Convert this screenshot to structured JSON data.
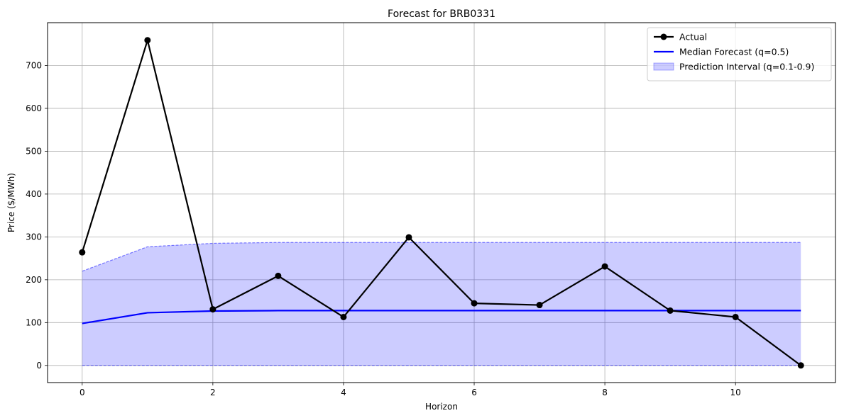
{
  "chart_data": {
    "type": "line",
    "title": "Forecast for BRB0331",
    "xlabel": "Horizon",
    "ylabel": "Price ($/MWh)",
    "x": [
      0,
      1,
      2,
      3,
      4,
      5,
      6,
      7,
      8,
      9,
      10,
      11
    ],
    "xlim": [
      -0.53,
      11.53
    ],
    "ylim": [
      -40,
      800
    ],
    "xticks": [
      0,
      2,
      4,
      6,
      8,
      10
    ],
    "yticks": [
      0,
      100,
      200,
      300,
      400,
      500,
      600,
      700
    ],
    "grid": true,
    "legend_position": "top-right",
    "series": [
      {
        "name": "Actual",
        "kind": "line-marker",
        "color": "#000000",
        "values": [
          264,
          759,
          131,
          209,
          113,
          299,
          145,
          141,
          231,
          128,
          113,
          0
        ]
      },
      {
        "name": "Median Forecast (q=0.5)",
        "kind": "line",
        "color": "#0000ff",
        "values": [
          98,
          123,
          127,
          128,
          128,
          128,
          128,
          128,
          128,
          128,
          128,
          128
        ]
      },
      {
        "name": "Prediction Interval (q=0.1-0.9)",
        "kind": "band",
        "color": "#0000ff",
        "fill_opacity": 0.2,
        "lower": [
          0,
          0,
          0,
          0,
          0,
          0,
          0,
          0,
          0,
          0,
          0,
          0
        ],
        "upper": [
          220,
          277,
          285,
          287,
          287,
          287,
          287,
          287,
          287,
          287,
          287,
          287
        ]
      }
    ]
  }
}
